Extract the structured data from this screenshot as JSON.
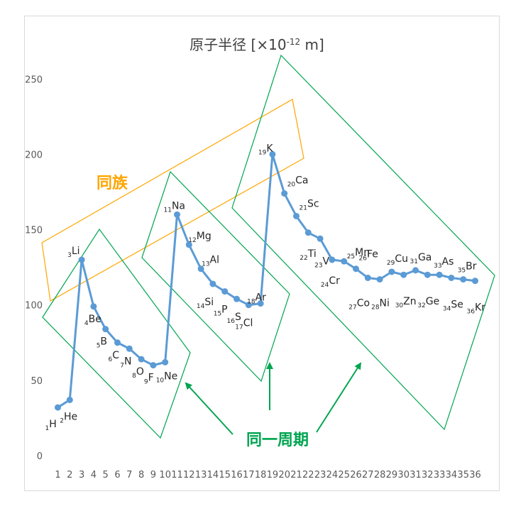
{
  "chart_data": {
    "type": "line",
    "title": "原子半径 [×10-12 m]",
    "title_parts": {
      "main": "原子半径 [",
      "times": "×",
      "base": "10",
      "exp": "-12",
      "unit": " m]"
    },
    "x": [
      1,
      2,
      3,
      4,
      5,
      6,
      7,
      8,
      9,
      10,
      11,
      12,
      13,
      14,
      15,
      16,
      17,
      18,
      19,
      20,
      21,
      22,
      23,
      24,
      25,
      26,
      27,
      28,
      29,
      30,
      31,
      32,
      33,
      34,
      35,
      36
    ],
    "values": [
      32,
      37,
      130,
      99,
      84,
      75,
      71,
      64,
      60,
      62,
      160,
      140,
      124,
      114,
      109,
      104,
      100,
      101,
      200,
      174,
      159,
      148,
      144,
      130,
      129,
      124,
      118,
      117,
      122,
      120,
      123,
      120,
      120,
      118,
      117,
      116
    ],
    "elements": [
      "H",
      "He",
      "Li",
      "Be",
      "B",
      "C",
      "N",
      "O",
      "F",
      "Ne",
      "Na",
      "Mg",
      "Al",
      "Si",
      "P",
      "S",
      "Cl",
      "Ar",
      "K",
      "Ca",
      "Sc",
      "Ti",
      "V",
      "Cr",
      "Mn",
      "Fe",
      "Co",
      "Ni",
      "Cu",
      "Zn",
      "Ga",
      "Ge",
      "As",
      "Se",
      "Br",
      "Kr"
    ],
    "ylim": [
      0,
      250
    ],
    "y_ticks": [
      0,
      50,
      100,
      150,
      200,
      250
    ],
    "x_ticks": [
      "1",
      "2",
      "3",
      "4",
      "5",
      "6",
      "7",
      "8",
      "9",
      "10",
      "11",
      "12",
      "13",
      "14",
      "15",
      "16",
      "17",
      "18",
      "19",
      "20",
      "21",
      "22",
      "23",
      "24",
      "25",
      "26",
      "27",
      "28",
      "29",
      "30",
      "31",
      "32",
      "33",
      "34",
      "35",
      "36"
    ],
    "grid": false,
    "series_color": "#5b9bd5",
    "annotations": {
      "same_group": {
        "text": "同族",
        "color": "#ffa500"
      },
      "same_period": {
        "text": "同一周期",
        "color": "#00a550"
      }
    }
  }
}
